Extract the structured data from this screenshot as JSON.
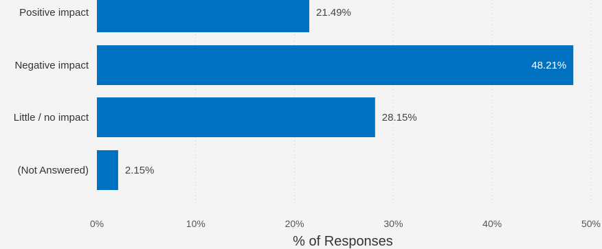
{
  "chart_data": {
    "type": "bar",
    "orientation": "horizontal",
    "categories": [
      "Positive impact",
      "Negative impact",
      "Little / no impact",
      "(Not Answered)"
    ],
    "values": [
      21.49,
      48.21,
      28.15,
      2.15
    ],
    "value_labels": [
      "21.49%",
      "48.21%",
      "28.15%",
      "2.15%"
    ],
    "xlabel": "% of Responses",
    "xlim": [
      0,
      50
    ],
    "x_ticks": [
      0,
      10,
      20,
      30,
      40,
      50
    ],
    "x_tick_labels": [
      "0%",
      "10%",
      "20%",
      "30%",
      "40%",
      "50%"
    ],
    "grid": true,
    "bar_color": "#0070c0",
    "grid_color": "#cccccc",
    "label_inside_threshold": 40
  }
}
